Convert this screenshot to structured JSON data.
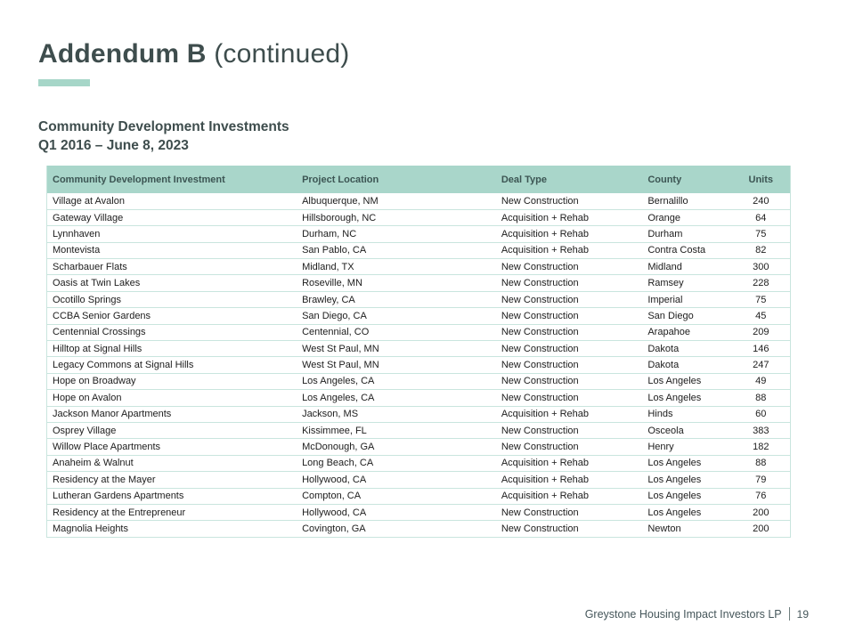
{
  "slide": {
    "title_bold": "Addendum B",
    "title_light": " (continued)",
    "section_heading_line1": "Community Development Investments",
    "section_heading_line2": "Q1 2016 – June 8, 2023",
    "footer": {
      "company": "Greystone Housing Impact Investors LP",
      "page_number": "19"
    }
  },
  "colors": {
    "accent_teal": "#a6d6c8",
    "table_header_bg": "#a9d6ca",
    "heading_text": "#3e4d4d",
    "table_border": "#c9e5de"
  },
  "table": {
    "columns": [
      "Community Development Investment",
      "Project Location",
      "Deal Type",
      "County",
      "Units"
    ],
    "column_widths_pct": [
      33.6,
      26.8,
      19.7,
      12.0,
      7.9
    ],
    "rows": [
      [
        "Village at Avalon",
        "Albuquerque, NM",
        "New Construction",
        "Bernalillo",
        "240"
      ],
      [
        "Gateway Village",
        "Hillsborough, NC",
        "Acquisition + Rehab",
        "Orange",
        "64"
      ],
      [
        "Lynnhaven",
        "Durham, NC",
        "Acquisition + Rehab",
        "Durham",
        "75"
      ],
      [
        "Montevista",
        "San Pablo, CA",
        "Acquisition + Rehab",
        "Contra Costa",
        "82"
      ],
      [
        "Scharbauer Flats",
        "Midland, TX",
        "New Construction",
        "Midland",
        "300"
      ],
      [
        "Oasis at Twin Lakes",
        "Roseville, MN",
        "New Construction",
        "Ramsey",
        "228"
      ],
      [
        "Ocotillo Springs",
        "Brawley, CA",
        "New Construction",
        "Imperial",
        "75"
      ],
      [
        "CCBA Senior Gardens",
        "San Diego, CA",
        "New Construction",
        "San Diego",
        "45"
      ],
      [
        "Centennial Crossings",
        "Centennial, CO",
        "New Construction",
        "Arapahoe",
        "209"
      ],
      [
        "Hilltop at Signal Hills",
        "West St Paul, MN",
        "New Construction",
        "Dakota",
        "146"
      ],
      [
        "Legacy Commons at Signal Hills",
        "West St Paul, MN",
        "New Construction",
        "Dakota",
        "247"
      ],
      [
        "Hope on Broadway",
        "Los Angeles, CA",
        "New Construction",
        "Los Angeles",
        "49"
      ],
      [
        "Hope on Avalon",
        "Los Angeles, CA",
        "New Construction",
        "Los Angeles",
        "88"
      ],
      [
        "Jackson Manor Apartments",
        "Jackson, MS",
        "Acquisition + Rehab",
        "Hinds",
        "60"
      ],
      [
        "Osprey Village",
        "Kissimmee, FL",
        "New Construction",
        "Osceola",
        "383"
      ],
      [
        "Willow Place Apartments",
        "McDonough, GA",
        "New Construction",
        "Henry",
        "182"
      ],
      [
        "Anaheim & Walnut",
        "Long Beach, CA",
        "Acquisition + Rehab",
        "Los Angeles",
        "88"
      ],
      [
        "Residency at the Mayer",
        "Hollywood, CA",
        "Acquisition + Rehab",
        "Los Angeles",
        "79"
      ],
      [
        "Lutheran Gardens Apartments",
        "Compton, CA",
        "Acquisition + Rehab",
        "Los Angeles",
        "76"
      ],
      [
        "Residency at the Entrepreneur",
        "Hollywood, CA",
        "New Construction",
        "Los Angeles",
        "200"
      ],
      [
        "Magnolia Heights",
        "Covington, GA",
        "New Construction",
        "Newton",
        "200"
      ]
    ]
  }
}
